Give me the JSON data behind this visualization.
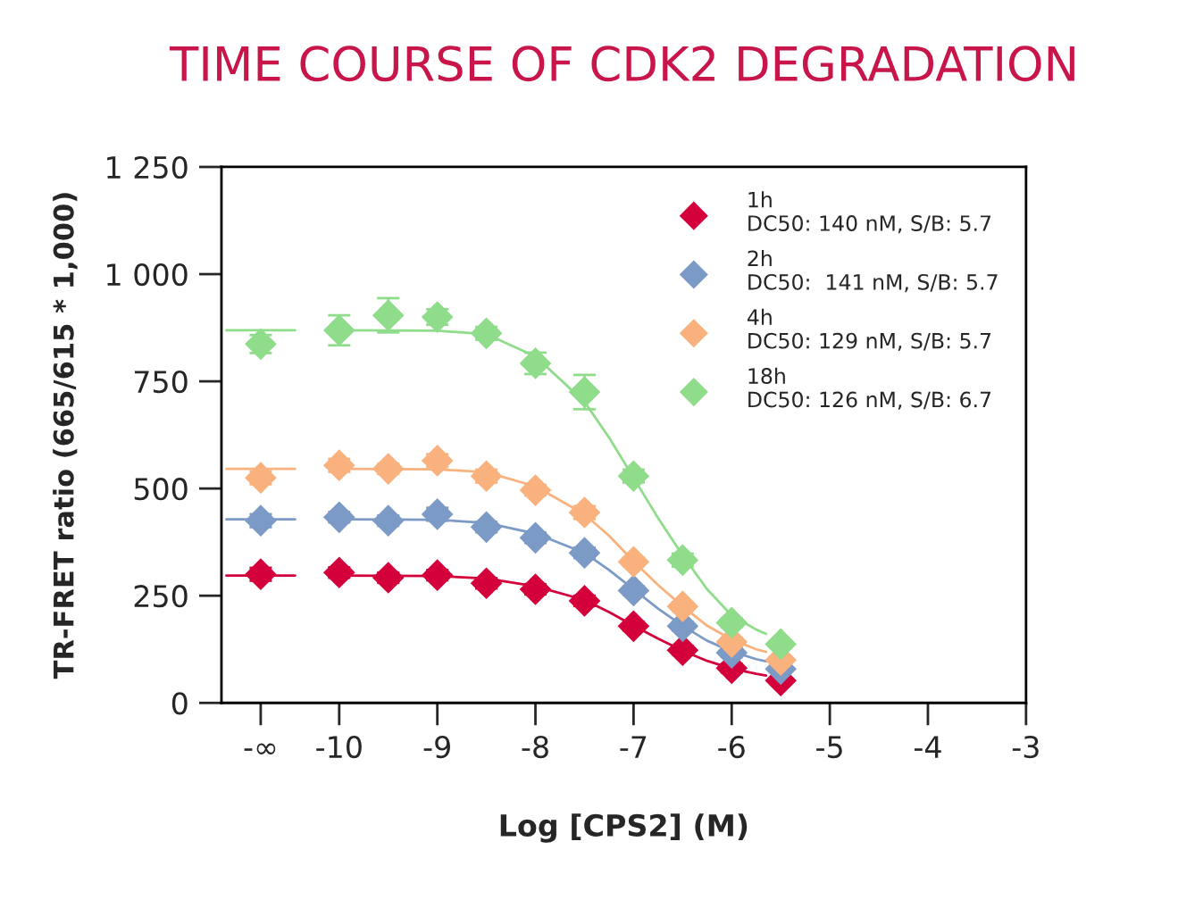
{
  "chart_data": {
    "type": "scatter",
    "title": "TIME COURSE OF CDK2 DEGRADATION",
    "xlabel": "Log [CPS2] (M)",
    "ylabel": "TR-FRET ratio (665/615 * 1,000)",
    "x": [
      -10.8,
      -10,
      -9.5,
      -9,
      -8.5,
      -8,
      -7.5,
      -7,
      -6.5,
      -6,
      -5.5
    ],
    "series": [
      {
        "name": "1h\nDC50: 140 nM, S/B: 5.7",
        "color": "#d4003c",
        "marker": "diamond",
        "values": [
          300,
          304,
          292,
          298,
          279,
          265,
          238,
          179,
          123,
          81,
          52
        ],
        "errors": [
          15,
          12,
          12,
          12,
          12,
          12,
          12,
          10,
          10,
          10,
          8
        ]
      },
      {
        "name": "2h\nDC50:  141 nM, S/B: 5.7",
        "color": "#7b9ac6",
        "marker": "diamond",
        "values": [
          425,
          433,
          425,
          440,
          410,
          385,
          350,
          262,
          179,
          117,
          79
        ],
        "errors": [
          15,
          12,
          12,
          15,
          12,
          12,
          12,
          10,
          10,
          10,
          8
        ]
      },
      {
        "name": "4h\nDC50: 129 nM, S/B: 5.7",
        "color": "#f9b27e",
        "marker": "diamond",
        "values": [
          525,
          554,
          546,
          565,
          529,
          496,
          444,
          329,
          225,
          142,
          100
        ],
        "errors": [
          15,
          15,
          12,
          15,
          15,
          12,
          15,
          10,
          10,
          10,
          8
        ]
      },
      {
        "name": "18h\nDC50: 126 nM, S/B: 6.7",
        "color": "#8fdc8b",
        "marker": "diamond",
        "values": [
          837,
          869,
          904,
          900,
          862,
          792,
          725,
          529,
          333,
          187,
          137
        ],
        "errors": [
          21,
          35,
          40,
          18,
          15,
          25,
          40,
          15,
          15,
          10,
          8
        ]
      },
      {
        "type": "line",
        "color": "#d4003c",
        "marker": "none",
        "x": [
          -11.15,
          -10.45,
          -10.4,
          -10,
          -9,
          -8.5,
          -8,
          -7.5,
          -7.25,
          -7,
          -6.75,
          -6.5,
          -6.25,
          -6,
          -5.75,
          -5.65
        ],
        "values": [
          297,
          297,
          null,
          297,
          296,
          290,
          272,
          240,
          212,
          180,
          150,
          122,
          98,
          80,
          68,
          64
        ]
      },
      {
        "type": "line",
        "color": "#7b9ac6",
        "marker": "none",
        "x": [
          -11.15,
          -10.45,
          -10.4,
          -10,
          -9,
          -8.5,
          -8,
          -7.5,
          -7.25,
          -7,
          -6.75,
          -6.5,
          -6.25,
          -6,
          -5.75,
          -5.65
        ],
        "values": [
          428,
          428,
          null,
          428,
          427,
          420,
          395,
          350,
          310,
          265,
          220,
          180,
          145,
          120,
          102,
          97
        ]
      },
      {
        "type": "line",
        "color": "#f9b27e",
        "marker": "none",
        "x": [
          -11.15,
          -10.45,
          -10.4,
          -10,
          -9,
          -8.5,
          -8,
          -7.5,
          -7.25,
          -7,
          -6.75,
          -6.5,
          -6.25,
          -6,
          -5.75,
          -5.65
        ],
        "values": [
          546,
          546,
          null,
          546,
          545,
          538,
          505,
          440,
          390,
          330,
          275,
          225,
          180,
          148,
          125,
          119
        ]
      },
      {
        "type": "line",
        "color": "#8fdc8b",
        "marker": "none",
        "x": [
          -11.15,
          -10.45,
          -10.4,
          -10,
          -9,
          -8.5,
          -8,
          -7.5,
          -7.25,
          -7,
          -6.75,
          -6.5,
          -6.25,
          -6,
          -5.75,
          -5.65
        ],
        "values": [
          869,
          869,
          null,
          869,
          868,
          860,
          808,
          702,
          619,
          525,
          431,
          344,
          265,
          204,
          171,
          161
        ]
      }
    ],
    "xlim": [
      -11.2,
      -3
    ],
    "xticks": [
      {
        "value": -10.8,
        "label": "-∞"
      },
      -10,
      -9,
      -8,
      -7,
      -6,
      -5,
      -4,
      -3
    ],
    "ylim": [
      0,
      1250
    ],
    "yticks": [
      0,
      250,
      500,
      750,
      {
        "value": 1000,
        "label": "1 000"
      },
      {
        "value": 1250,
        "label": "1 250"
      }
    ],
    "grid": false,
    "legend": "top right"
  }
}
